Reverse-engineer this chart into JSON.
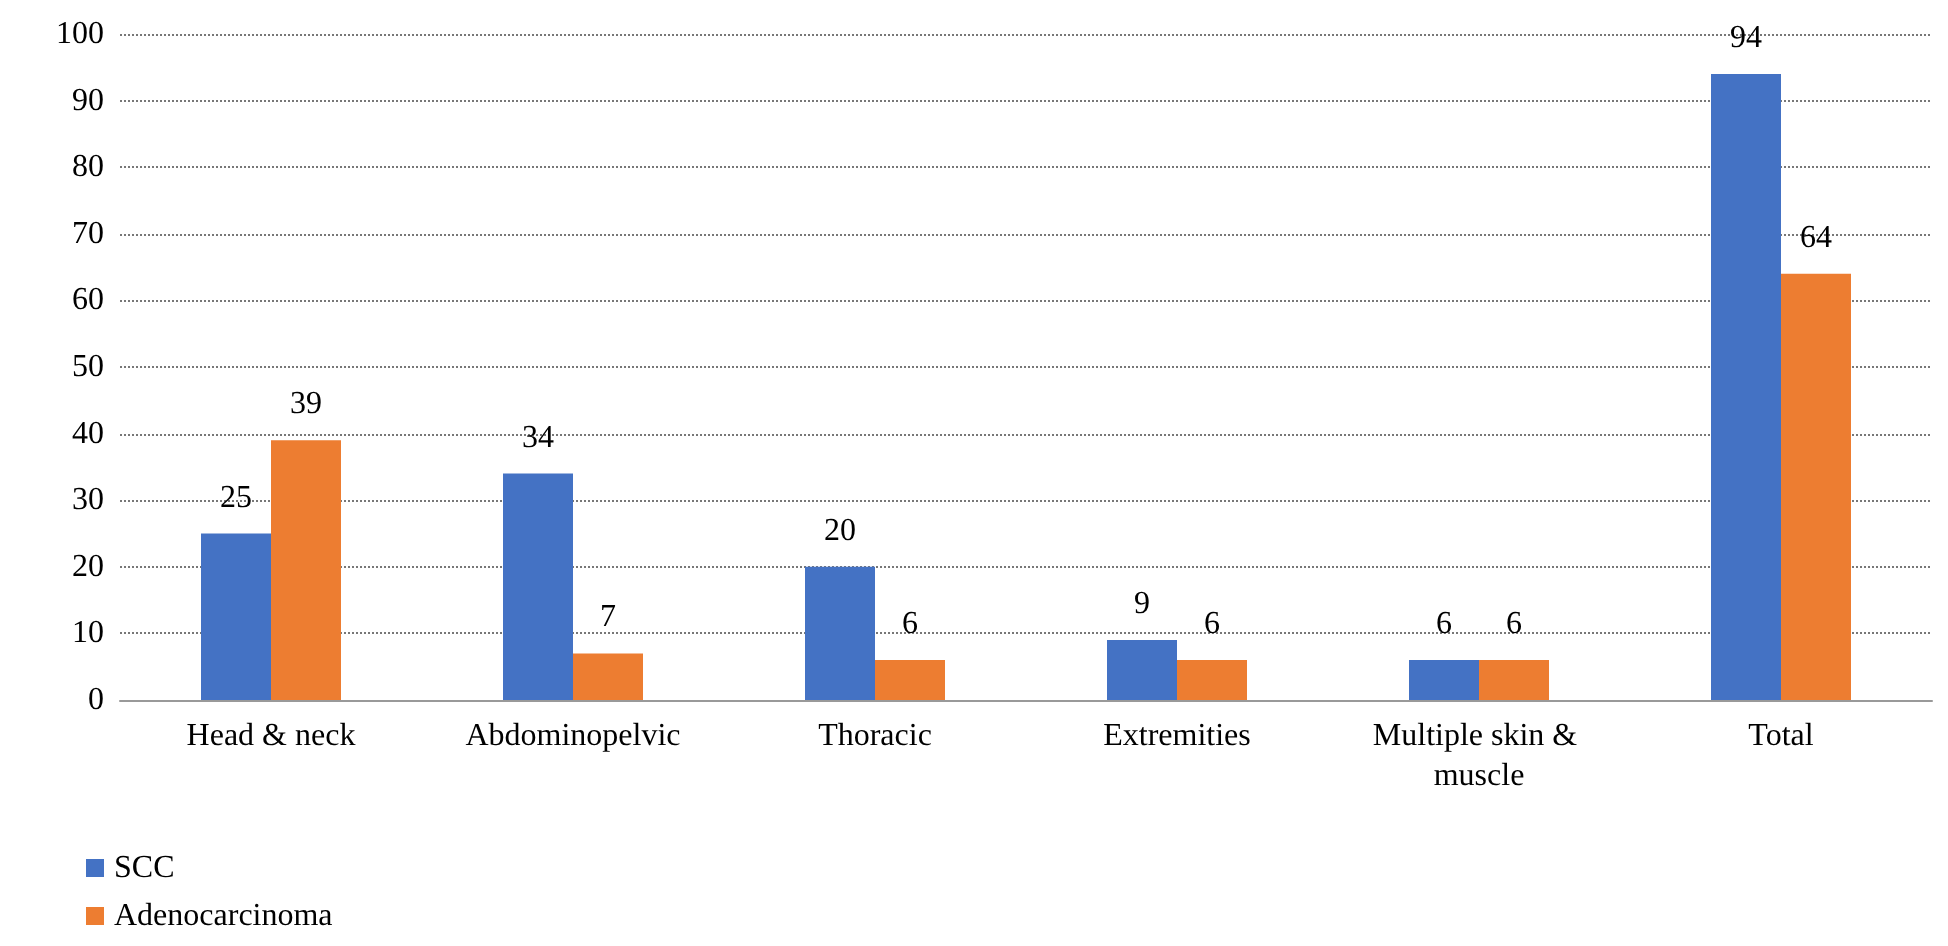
{
  "chart_data": {
    "type": "bar",
    "categories": [
      "Head & neck",
      "Abdominopelvic",
      "Thoracic",
      "Extremities",
      "Multiple skin & muscle",
      "Total"
    ],
    "series": [
      {
        "name": "SCC",
        "color": "#4472c4",
        "values": [
          25,
          34,
          20,
          9,
          6,
          94
        ]
      },
      {
        "name": "Adenocarcinoma",
        "color": "#ed7d31",
        "values": [
          39,
          7,
          6,
          6,
          6,
          64
        ]
      }
    ],
    "ylim": [
      0,
      100
    ],
    "yticks": [
      0,
      10,
      20,
      30,
      40,
      50,
      60,
      70,
      80,
      90,
      100
    ],
    "grid": "y",
    "legend": "bottom left",
    "data_labels": true
  }
}
